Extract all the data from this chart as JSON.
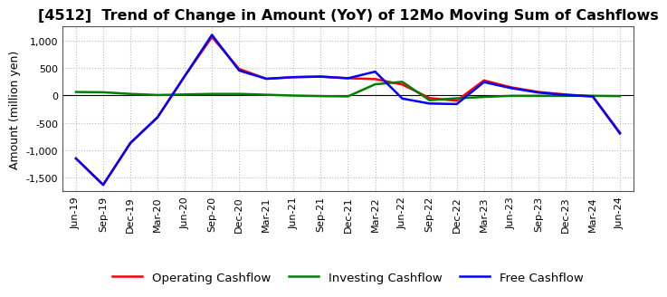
{
  "title": "[4512]  Trend of Change in Amount (YoY) of 12Mo Moving Sum of Cashflows",
  "ylabel": "Amount (million yen)",
  "background_color": "#ffffff",
  "plot_bg_color": "#ffffff",
  "grid_color": "#bbbbbb",
  "xlabels": [
    "Jun-19",
    "Sep-19",
    "Dec-19",
    "Mar-20",
    "Jun-20",
    "Sep-20",
    "Dec-20",
    "Mar-21",
    "Jun-21",
    "Sep-21",
    "Dec-21",
    "Mar-22",
    "Jun-22",
    "Sep-22",
    "Dec-22",
    "Mar-23",
    "Jun-23",
    "Sep-23",
    "Dec-23",
    "Mar-24",
    "Jun-24"
  ],
  "operating": [
    -1150,
    -1630,
    -870,
    -400,
    350,
    1060,
    480,
    300,
    330,
    340,
    310,
    295,
    195,
    -50,
    -100,
    270,
    145,
    60,
    15,
    -20,
    -680
  ],
  "investing": [
    60,
    55,
    25,
    5,
    15,
    25,
    25,
    10,
    -5,
    -15,
    -20,
    200,
    245,
    -90,
    -55,
    -30,
    -10,
    -10,
    -10,
    -10,
    -15
  ],
  "free": [
    -1150,
    -1630,
    -870,
    -400,
    350,
    1100,
    450,
    300,
    330,
    340,
    310,
    430,
    -60,
    -150,
    -160,
    240,
    130,
    50,
    5,
    -20,
    -695
  ],
  "ylim": [
    -1750,
    1250
  ],
  "yticks": [
    -1500,
    -1000,
    -500,
    0,
    500,
    1000
  ],
  "operating_color": "#ff0000",
  "investing_color": "#008000",
  "free_color": "#0000ff",
  "linewidth": 1.8,
  "title_fontsize": 11.5,
  "axis_fontsize": 9,
  "tick_fontsize": 8,
  "legend_fontsize": 9.5
}
